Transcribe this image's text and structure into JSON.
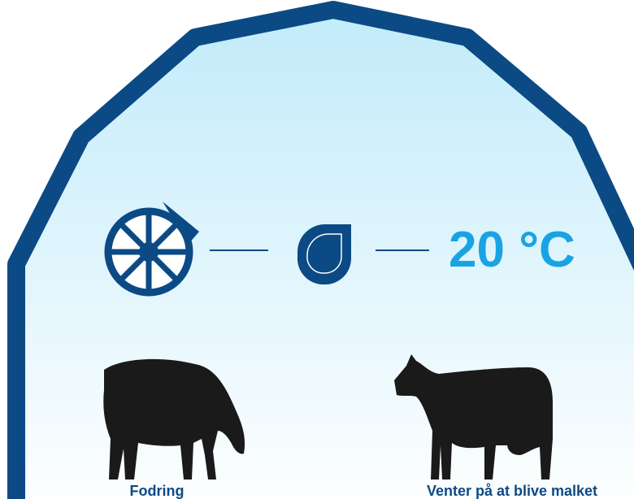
{
  "status": {
    "temperature": "20 °C"
  },
  "cows": [
    {
      "label": "Fodring"
    },
    {
      "label": "Venter på at blive malket"
    }
  ]
}
